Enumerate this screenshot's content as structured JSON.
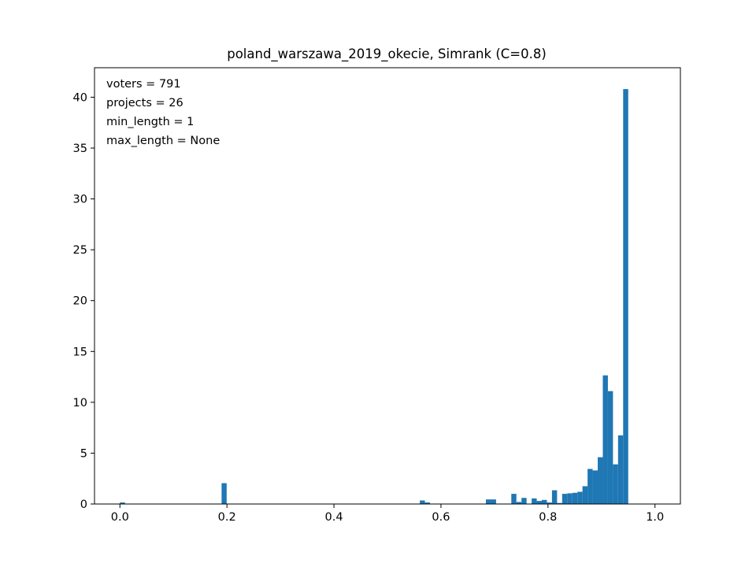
{
  "chart_data": {
    "type": "bar",
    "title": "poland_warszawa_2019_okecie, Simrank (C=0.8)",
    "xlabel": "",
    "ylabel": "",
    "xlim": [
      -0.0475,
      1.0475
    ],
    "ylim": [
      0,
      42.9
    ],
    "xticks": [
      0.0,
      0.2,
      0.4,
      0.6,
      0.8,
      1.0
    ],
    "xtick_labels": [
      "0.0",
      "0.2",
      "0.4",
      "0.6",
      "0.8",
      "1.0"
    ],
    "yticks": [
      0,
      5,
      10,
      15,
      20,
      25,
      30,
      35,
      40
    ],
    "ytick_labels": [
      "0",
      "5",
      "10",
      "15",
      "20",
      "25",
      "30",
      "35",
      "40"
    ],
    "bar_color": "#1f77b4",
    "bin_width": 0.0095,
    "grid": false,
    "annotation_lines": [
      "voters = 791",
      "projects = 26",
      "min_length = 1",
      "max_length = None"
    ],
    "bins": [
      {
        "x": 0.0,
        "h": 0.15
      },
      {
        "x": 0.19,
        "h": 2.05
      },
      {
        "x": 0.5605,
        "h": 0.35
      },
      {
        "x": 0.57,
        "h": 0.15
      },
      {
        "x": 0.684,
        "h": 0.45
      },
      {
        "x": 0.6935,
        "h": 0.45
      },
      {
        "x": 0.7315,
        "h": 1.0
      },
      {
        "x": 0.741,
        "h": 0.2
      },
      {
        "x": 0.7505,
        "h": 0.6
      },
      {
        "x": 0.7695,
        "h": 0.55
      },
      {
        "x": 0.779,
        "h": 0.3
      },
      {
        "x": 0.7885,
        "h": 0.4
      },
      {
        "x": 0.798,
        "h": 0.15
      },
      {
        "x": 0.8075,
        "h": 1.35
      },
      {
        "x": 0.817,
        "h": 0.1
      },
      {
        "x": 0.8265,
        "h": 1.0
      },
      {
        "x": 0.836,
        "h": 1.05
      },
      {
        "x": 0.8455,
        "h": 1.1
      },
      {
        "x": 0.855,
        "h": 1.2
      },
      {
        "x": 0.8645,
        "h": 1.75
      },
      {
        "x": 0.874,
        "h": 3.45
      },
      {
        "x": 0.8835,
        "h": 3.3
      },
      {
        "x": 0.893,
        "h": 4.6
      },
      {
        "x": 0.9025,
        "h": 12.65
      },
      {
        "x": 0.912,
        "h": 11.1
      },
      {
        "x": 0.9215,
        "h": 3.9
      },
      {
        "x": 0.931,
        "h": 6.75
      },
      {
        "x": 0.9405,
        "h": 40.8
      }
    ]
  }
}
